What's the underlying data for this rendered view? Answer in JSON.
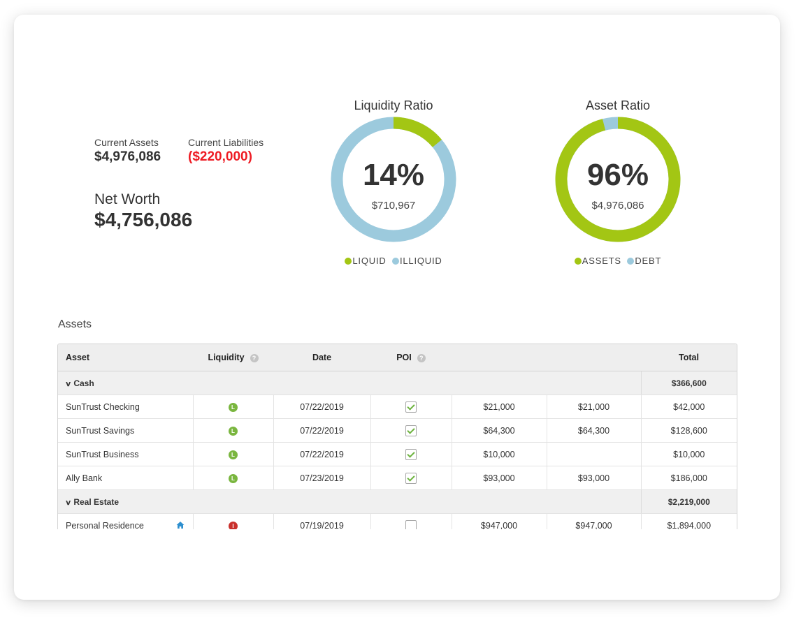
{
  "summary": {
    "current_assets_label": "Current Assets",
    "current_assets_value": "$4,976,086",
    "current_liabilities_label": "Current Liabilities",
    "current_liabilities_value": "($220,000)",
    "net_worth_label": "Net Worth",
    "net_worth_value": "$4,756,086"
  },
  "liquidity_ratio": {
    "title": "Liquidity Ratio",
    "percent_text": "14%",
    "percent": 14,
    "amount": "$710,967",
    "legend": [
      {
        "label": "LIQUID",
        "color": "#a3c614"
      },
      {
        "label": "ILLIQUID",
        "color": "#9ccadd"
      }
    ]
  },
  "asset_ratio": {
    "title": "Asset Ratio",
    "percent_text": "96%",
    "percent": 96,
    "amount": "$4,976,086",
    "legend": [
      {
        "label": "ASSETS",
        "color": "#a3c614"
      },
      {
        "label": "DEBT",
        "color": "#9ccadd"
      }
    ]
  },
  "assets_section": {
    "title": "Assets",
    "columns": {
      "asset": "Asset",
      "liquidity": "Liquidity",
      "date": "Date",
      "poi": "POI",
      "col5": "",
      "col6": "",
      "total": "Total"
    },
    "groups": [
      {
        "name": "Cash",
        "total": "$366,600",
        "rows": [
          {
            "asset": "SunTrust Checking",
            "liquidity": "L",
            "date": "07/22/2019",
            "poi": true,
            "v1": "$21,000",
            "v2": "$21,000",
            "total": "$42,000"
          },
          {
            "asset": "SunTrust Savings",
            "liquidity": "L",
            "date": "07/22/2019",
            "poi": true,
            "v1": "$64,300",
            "v2": "$64,300",
            "total": "$128,600"
          },
          {
            "asset": "SunTrust Business",
            "liquidity": "L",
            "date": "07/22/2019",
            "poi": true,
            "v1": "$10,000",
            "v2": "",
            "total": "$10,000"
          },
          {
            "asset": "Ally Bank",
            "liquidity": "L",
            "date": "07/23/2019",
            "poi": true,
            "v1": "$93,000",
            "v2": "$93,000",
            "total": "$186,000"
          }
        ]
      },
      {
        "name": "Real Estate",
        "total": "$2,219,000",
        "rows": [
          {
            "asset": "Personal Residence",
            "liquidity": "I",
            "date": "07/19/2019",
            "poi": false,
            "v1": "$947,000",
            "v2": "$947,000",
            "total": "$1,894,000",
            "icon": "home-icon"
          }
        ]
      }
    ]
  },
  "colors": {
    "green": "#a3c614",
    "blue": "#9ccadd",
    "liability_red": "#ee1c24"
  }
}
